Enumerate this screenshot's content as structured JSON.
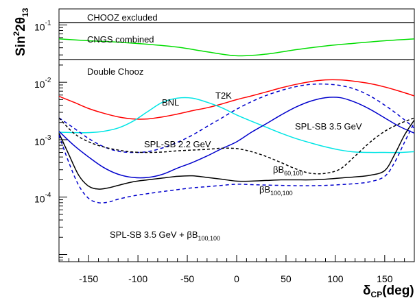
{
  "chart_data": {
    "type": "line",
    "ylabel": "Sin",
    "ylabel_sup": "2",
    "ylabel_mid": "2θ",
    "ylabel_sub": "13",
    "xlabel": "δ",
    "xlabel_sub": "CP",
    "xlabel_unit": "(deg)",
    "x_scale": "linear",
    "y_scale": "log",
    "xlim": [
      -180,
      180
    ],
    "ylim": [
      7.5e-06,
      0.19
    ],
    "grid": false,
    "x_ticks": [
      -150,
      -100,
      -50,
      0,
      50,
      100,
      150
    ],
    "x_tick_labels": [
      "-150",
      "-100",
      "-50",
      "0",
      "50",
      "100",
      "150"
    ],
    "y_ticks": [
      {
        "value": 0.1,
        "base": "10",
        "exp": "-1"
      },
      {
        "value": 0.01,
        "base": "10",
        "exp": "-2"
      },
      {
        "value": 0.001,
        "base": "10",
        "exp": "-3"
      },
      {
        "value": 0.0001,
        "base": "10",
        "exp": "-4"
      }
    ],
    "reference_lines": [
      {
        "name": "CHOOZ excluded",
        "y": 0.11,
        "color": "#000000"
      },
      {
        "name": "Double Chooz",
        "y": 0.025,
        "color": "#000000"
      }
    ],
    "series": [
      {
        "key": "cngs",
        "label": "CNGS combined",
        "color": "#00dd00",
        "dash": "none",
        "x": [
          -180,
          -150,
          -120,
          -90,
          -60,
          -30,
          0,
          30,
          60,
          90,
          120,
          150,
          180
        ],
        "y": [
          0.057,
          0.053,
          0.05,
          0.046,
          0.041,
          0.034,
          0.029,
          0.031,
          0.037,
          0.043,
          0.048,
          0.053,
          0.057
        ]
      },
      {
        "key": "t2k",
        "label": "T2K",
        "color": "#ff0000",
        "dash": "none",
        "x": [
          -180,
          -165,
          -150,
          -135,
          -120,
          -105,
          -90,
          -75,
          -60,
          -45,
          -30,
          -15,
          0,
          15,
          30,
          45,
          60,
          75,
          90,
          105,
          120,
          135,
          150,
          165,
          180
        ],
        "y": [
          0.0057,
          0.0045,
          0.0035,
          0.0029,
          0.0025,
          0.0023,
          0.0023,
          0.0025,
          0.0028,
          0.0032,
          0.0036,
          0.0042,
          0.005,
          0.0058,
          0.0068,
          0.008,
          0.0092,
          0.0103,
          0.011,
          0.011,
          0.0104,
          0.0095,
          0.0083,
          0.007,
          0.0058
        ]
      },
      {
        "key": "bnl",
        "label": "BNL",
        "color": "#00e5e5",
        "dash": "none",
        "x": [
          -180,
          -165,
          -150,
          -135,
          -120,
          -105,
          -90,
          -75,
          -60,
          -45,
          -30,
          -15,
          0,
          15,
          30,
          45,
          60,
          75,
          90,
          105,
          120,
          135,
          150,
          165,
          180
        ],
        "y": [
          0.00135,
          0.00133,
          0.00133,
          0.0014,
          0.0016,
          0.0021,
          0.0031,
          0.0045,
          0.0053,
          0.0053,
          0.0045,
          0.0036,
          0.0027,
          0.0021,
          0.00165,
          0.0013,
          0.00105,
          0.00088,
          0.00075,
          0.00066,
          0.00061,
          0.0006,
          0.0006,
          0.0006,
          0.00062
        ]
      },
      {
        "key": "spl22",
        "label": "SPL-SB 2.2 GeV",
        "color": "#0000cc",
        "dash": "5,4",
        "x": [
          -180,
          -165,
          -150,
          -135,
          -120,
          -105,
          -90,
          -75,
          -60,
          -45,
          -30,
          -15,
          0,
          15,
          30,
          45,
          60,
          75,
          90,
          105,
          120,
          135,
          150,
          165,
          180
        ],
        "y": [
          0.0024,
          0.0016,
          0.00105,
          0.00076,
          0.00063,
          0.0006,
          0.00062,
          0.00072,
          0.0009,
          0.0012,
          0.0017,
          0.0024,
          0.0034,
          0.0046,
          0.0059,
          0.0072,
          0.0084,
          0.0092,
          0.0093,
          0.0088,
          0.0076,
          0.0058,
          0.004,
          0.0026,
          0.0016
        ]
      },
      {
        "key": "spl35",
        "label": "SPL-SB 3.5 GeV",
        "color": "#0000cc",
        "dash": "none",
        "x": [
          -180,
          -165,
          -150,
          -135,
          -120,
          -105,
          -90,
          -75,
          -60,
          -45,
          -30,
          -15,
          0,
          15,
          30,
          45,
          60,
          75,
          90,
          105,
          120,
          135,
          150,
          165,
          180
        ],
        "y": [
          0.0014,
          0.0008,
          0.0005,
          0.00033,
          0.00025,
          0.00022,
          0.00022,
          0.00025,
          0.00032,
          0.0004,
          0.00052,
          0.0007,
          0.00092,
          0.00135,
          0.0019,
          0.0027,
          0.0037,
          0.0047,
          0.0054,
          0.0054,
          0.0045,
          0.0034,
          0.0024,
          0.0017,
          0.0013
        ]
      },
      {
        "key": "bb60",
        "label_base": "βB",
        "label_sub": "60,100",
        "color": "#000000",
        "dash": "4,3",
        "x": [
          -180,
          -165,
          -150,
          -135,
          -120,
          -105,
          -90,
          -75,
          -60,
          -45,
          -30,
          -15,
          0,
          15,
          30,
          45,
          60,
          75,
          90,
          105,
          120,
          135,
          150,
          165,
          180
        ],
        "y": [
          0.0024,
          0.0013,
          0.00092,
          0.00075,
          0.00066,
          0.00061,
          0.0006,
          0.00061,
          0.00064,
          0.00066,
          0.00068,
          0.00071,
          0.0007,
          0.00062,
          0.00051,
          0.0004,
          0.00031,
          0.00026,
          0.00026,
          0.00031,
          0.00052,
          0.0009,
          0.0014,
          0.0019,
          0.0024
        ]
      },
      {
        "key": "bb100",
        "label_base": "βB",
        "label_sub": "100,100",
        "color": "#000000",
        "dash": "none",
        "x": [
          -180,
          -170,
          -160,
          -150,
          -140,
          -130,
          -120,
          -105,
          -90,
          -75,
          -60,
          -45,
          -30,
          -15,
          0,
          15,
          30,
          45,
          60,
          75,
          90,
          105,
          120,
          135,
          150,
          160,
          170,
          180
        ],
        "y": [
          0.0013,
          0.00055,
          0.00024,
          0.000155,
          0.000138,
          0.000145,
          0.00016,
          0.000185,
          0.0002,
          0.000215,
          0.00023,
          0.000235,
          0.00022,
          0.000205,
          0.00019,
          0.00019,
          0.000195,
          0.0002,
          0.0002,
          0.0002,
          0.000205,
          0.000215,
          0.000225,
          0.00024,
          0.00029,
          0.00055,
          0.0012,
          0.0022
        ]
      },
      {
        "key": "combo",
        "label_base": "SPL-SB 3.5 GeV + βB",
        "label_sub": "100,100",
        "color": "#0000cc",
        "dash": "5,4",
        "x": [
          -180,
          -170,
          -160,
          -150,
          -140,
          -130,
          -120,
          -105,
          -90,
          -75,
          -60,
          -45,
          -30,
          -15,
          0,
          15,
          30,
          45,
          60,
          75,
          90,
          105,
          120,
          135,
          150,
          160,
          170,
          180
        ],
        "y": [
          0.0012,
          0.0004,
          0.00016,
          9.5e-05,
          8e-05,
          8.2e-05,
          9.2e-05,
          0.000105,
          0.000115,
          0.000125,
          0.000135,
          0.000145,
          0.000152,
          0.00016,
          0.000168,
          0.000165,
          0.000162,
          0.00016,
          0.000158,
          0.000158,
          0.00016,
          0.000165,
          0.000172,
          0.000185,
          0.00023,
          0.0004,
          0.0009,
          0.002
        ]
      }
    ]
  }
}
